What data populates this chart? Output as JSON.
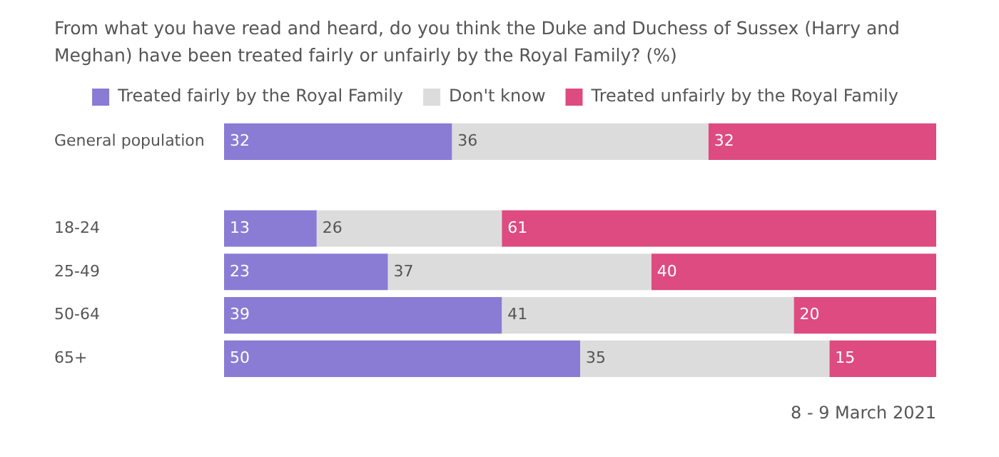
{
  "chart_data": {
    "type": "bar",
    "orientation": "horizontal",
    "stacked": true,
    "title": "From what you have read and heard, do you think the Duke and Duchess of Sussex (Harry and Meghan) have been treated fairly or unfairly by the Royal Family? (%)",
    "categories": [
      "General population",
      null,
      "18-24",
      "25-49",
      "50-64",
      "65+"
    ],
    "series": [
      {
        "name": "Treated fairly by the Royal Family",
        "color": "#8a7bd4",
        "values": [
          32,
          null,
          13,
          23,
          39,
          50
        ]
      },
      {
        "name": "Don't know",
        "color": "#dcdcdc",
        "values": [
          36,
          null,
          26,
          37,
          41,
          35
        ]
      },
      {
        "name": "Treated unfairly by the Royal Family",
        "color": "#dd4b80",
        "values": [
          32,
          null,
          61,
          40,
          20,
          15
        ]
      }
    ],
    "xlim": [
      0,
      100
    ],
    "tick_labels": "y",
    "grid": false,
    "legend": "top",
    "data_labels": true,
    "annotations": [
      "8 - 9 March 2021"
    ]
  }
}
